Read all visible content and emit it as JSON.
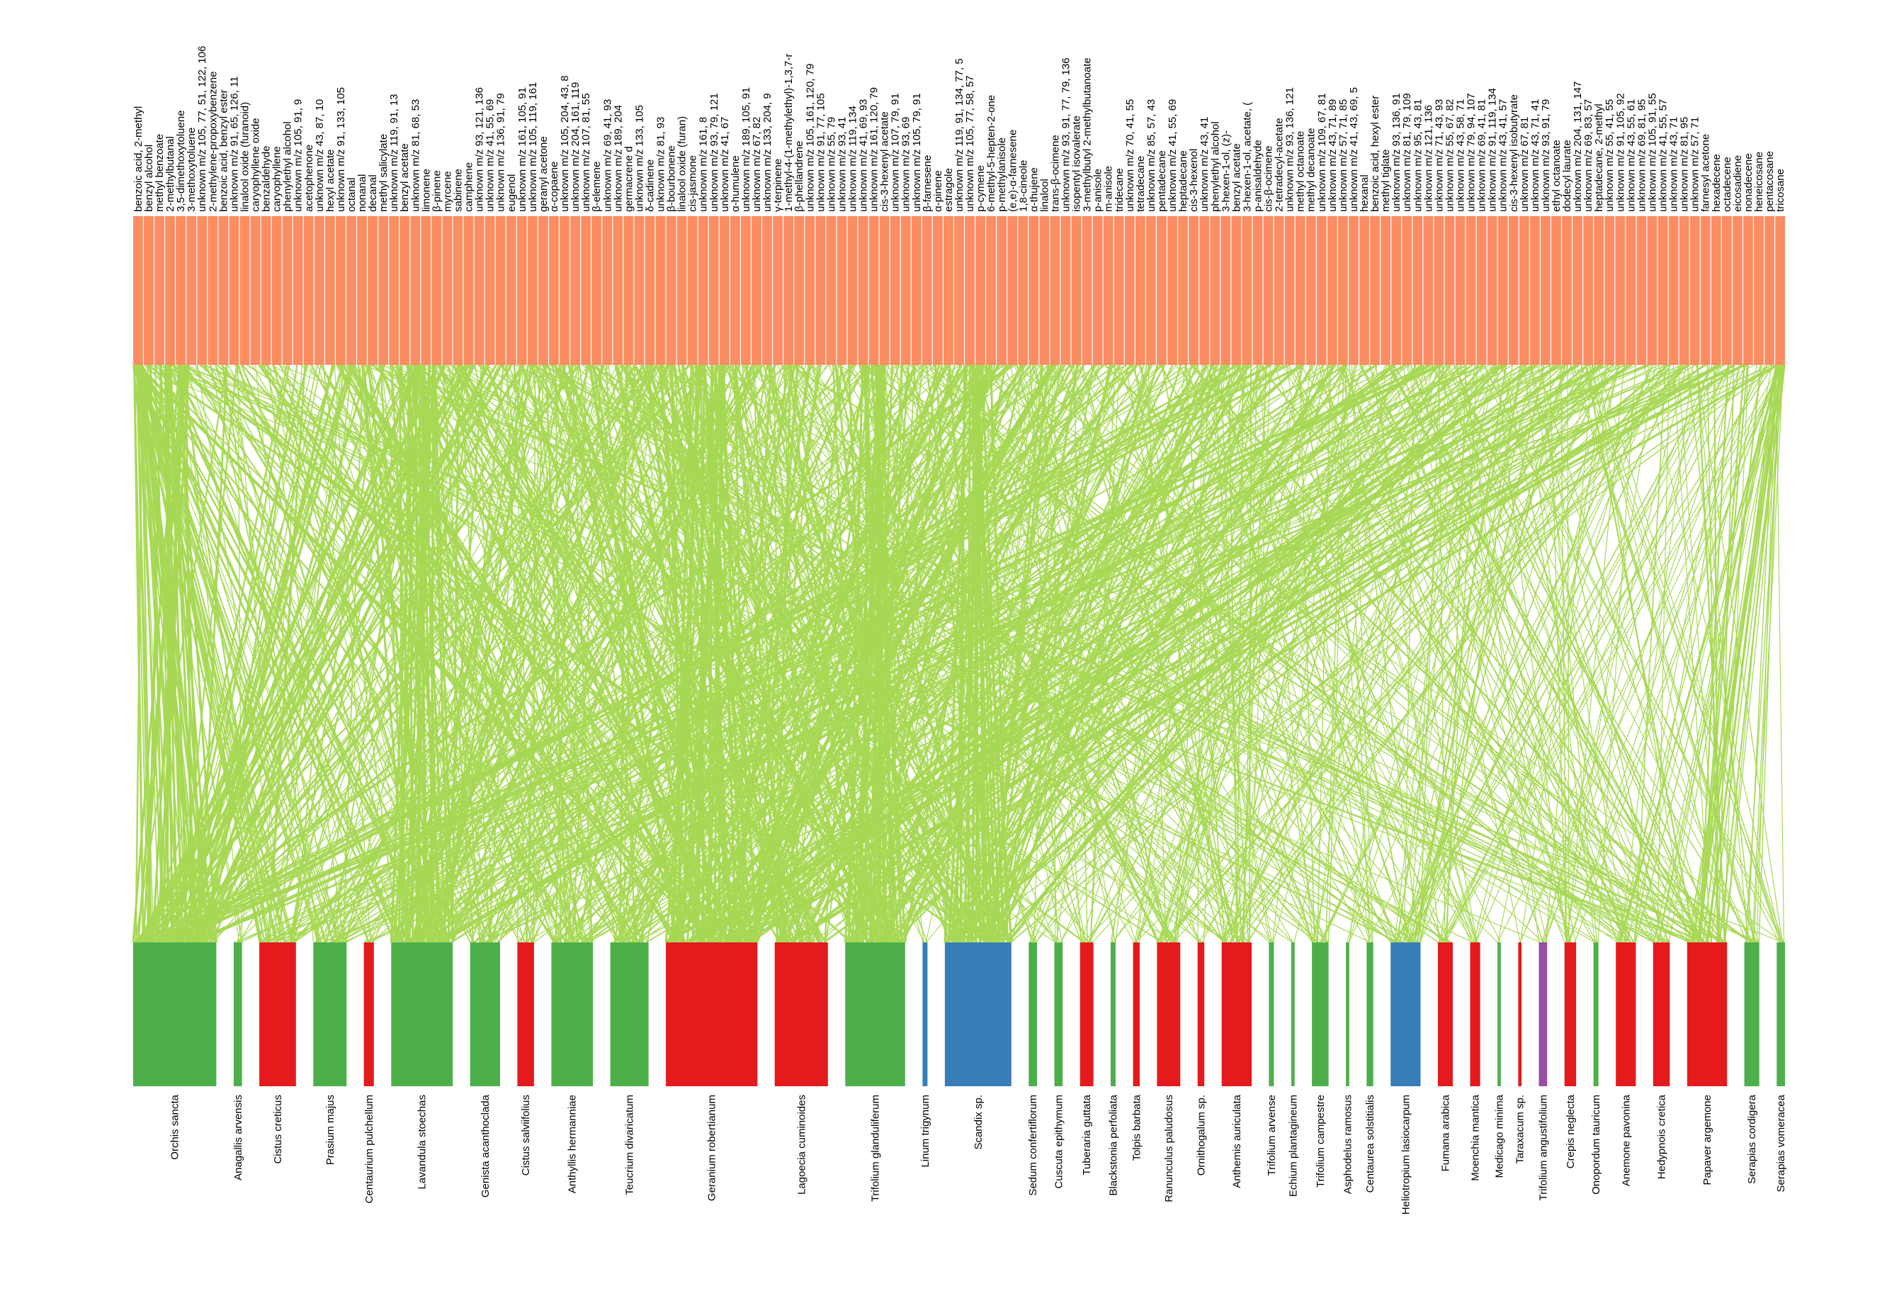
{
  "chart_data": {
    "type": "bipartite-network",
    "title": "",
    "colors": {
      "compound_bar": "#fc8d62",
      "link": "#a6d854",
      "plant_green": "#4daf4a",
      "plant_red": "#e41a1c",
      "plant_blue": "#377eb8",
      "plant_purple": "#984ea3"
    },
    "plants": [
      {
        "name": "Orchis sancta",
        "weight": 5.0,
        "color": "green"
      },
      {
        "name": "Anagallis arvensis",
        "weight": 0.5,
        "color": "green"
      },
      {
        "name": "Cistus creticus",
        "weight": 2.2,
        "color": "red"
      },
      {
        "name": "Prasium majus",
        "weight": 2.0,
        "color": "green"
      },
      {
        "name": "Centaurium pulchellum",
        "weight": 0.6,
        "color": "red"
      },
      {
        "name": "Lavandula stoechas",
        "weight": 3.7,
        "color": "green"
      },
      {
        "name": "Genista acanthoclada",
        "weight": 1.8,
        "color": "green"
      },
      {
        "name": "Cistus salviifolius",
        "weight": 1.0,
        "color": "red"
      },
      {
        "name": "Anthyllis hermanniae",
        "weight": 2.5,
        "color": "green"
      },
      {
        "name": "Teucrium divaricatum",
        "weight": 2.3,
        "color": "green"
      },
      {
        "name": "Geranium robertianum",
        "weight": 5.5,
        "color": "red"
      },
      {
        "name": "Lagoecia cuminoides",
        "weight": 3.2,
        "color": "red"
      },
      {
        "name": "Trifolium glanduliferum",
        "weight": 3.6,
        "color": "green"
      },
      {
        "name": "Linum trigynum",
        "weight": 0.3,
        "color": "blue"
      },
      {
        "name": "Scandix sp.",
        "weight": 4.0,
        "color": "blue"
      },
      {
        "name": "Sedum confertiflorum",
        "weight": 0.5,
        "color": "green"
      },
      {
        "name": "Cuscuta epithymum",
        "weight": 0.5,
        "color": "green"
      },
      {
        "name": "Tuberaria guttata",
        "weight": 0.8,
        "color": "red"
      },
      {
        "name": "Blackstonia perfoliata",
        "weight": 0.3,
        "color": "green"
      },
      {
        "name": "Tolpis barbata",
        "weight": 0.4,
        "color": "red"
      },
      {
        "name": "Ranunculus paludosus",
        "weight": 1.4,
        "color": "red"
      },
      {
        "name": "Ornithogalum sp.",
        "weight": 0.4,
        "color": "red"
      },
      {
        "name": "Anthemis auriculata",
        "weight": 1.8,
        "color": "red"
      },
      {
        "name": "Trifolium arvense",
        "weight": 0.3,
        "color": "green"
      },
      {
        "name": "Echium plantagineum",
        "weight": 0.2,
        "color": "green"
      },
      {
        "name": "Trifolium campestre",
        "weight": 1.0,
        "color": "green"
      },
      {
        "name": "Asphodelus ramosus",
        "weight": 0.2,
        "color": "green"
      },
      {
        "name": "Centaurea solstitialis",
        "weight": 0.4,
        "color": "green"
      },
      {
        "name": "Heliotropium lasiocarpum",
        "weight": 1.8,
        "color": "blue"
      },
      {
        "name": "Fumana arabica",
        "weight": 0.9,
        "color": "red"
      },
      {
        "name": "Moenchia mantica",
        "weight": 0.6,
        "color": "red"
      },
      {
        "name": "Medicago minima",
        "weight": 0.2,
        "color": "green"
      },
      {
        "name": "Taraxacum sp.",
        "weight": 0.2,
        "color": "red"
      },
      {
        "name": "Trifolium angustifolium",
        "weight": 0.5,
        "color": "purple"
      },
      {
        "name": "Crepis neglecta",
        "weight": 0.7,
        "color": "red"
      },
      {
        "name": "Onopordum tauricum",
        "weight": 0.3,
        "color": "green"
      },
      {
        "name": "Anemone pavonina",
        "weight": 1.2,
        "color": "red"
      },
      {
        "name": "Hedypnois cretica",
        "weight": 1.0,
        "color": "red"
      },
      {
        "name": "Papaver argemone",
        "weight": 2.4,
        "color": "red"
      },
      {
        "name": "Serapias cordigera",
        "weight": 0.9,
        "color": "green"
      },
      {
        "name": "Serapias vomeracea",
        "weight": 0.5,
        "color": "green"
      }
    ],
    "compounds": [
      "benzoic acid, 2-methyl",
      "benzyl alcohol",
      "methyl benzoate",
      "2-methylbutanal",
      "3,5-dimethoxytoluene",
      "3-methoxytoluene",
      "unknown m/z 105, 77, 51, 122, 106",
      "2-methylene-propoxybenzene",
      "benzoic acid, benzyl ester",
      "unknown m/z 91, 65, 126, 11",
      "linalool oxide (furanoid)",
      "caryophyllene oxide",
      "benzaldehyde",
      "caryophyllene",
      "phenylethyl alcohol",
      "unknown m/z 105, 91, 9",
      "acetophenone",
      "unknown m/z 43, 87, 10",
      "hexyl acetate",
      "unknown m/z 91, 133, 105",
      "octanal",
      "nonanal",
      "decanal",
      "methyl salicylate",
      "unknown m/z 119, 91, 13",
      "benzyl acetate",
      "unknown m/z 81, 68, 53",
      "limonene",
      "β-pinene",
      "myrcene",
      "sabinene",
      "camphene",
      "unknown m/z 93, 121, 136",
      "unknown m/z 41, 55, 69",
      "unknown m/z 136, 91, 79",
      "eugenol",
      "unknown m/z 161, 105, 91",
      "unknown m/z 105, 119, 161",
      "geranyl acetone",
      "α-copaene",
      "unknown m/z 105, 204, 43, 8",
      "unknown m/z 204, 161, 119",
      "unknown m/z 107, 81, 55",
      "β-elemene",
      "unknown m/z 69, 41, 93",
      "unknown m/z 189, 204",
      "germacrene d",
      "unknown m/z 133, 105",
      "δ-cadinene",
      "unknown m/z 81, 93",
      "β-bourbonene",
      "linalool oxide (furan)",
      "cis-jasmone",
      "unknown m/z 161, 8",
      "unknown m/z 93, 79, 121",
      "unknown m/z 41, 67",
      "α-humulene",
      "unknown m/z 189, 105, 91",
      "unknown m/z 67, 82",
      "unknown m/z 133, 204, 9",
      "γ-terpinene",
      "1-methyl-4-(1-methylethyl)-1,3,7-r",
      "β-phellandrene",
      "unknown m/z 105, 161, 120, 79",
      "unknown m/z 91, 77, 105",
      "unknown m/z 55, 79",
      "unknown m/z 93, 41",
      "unknown m/z 119, 134",
      "unknown m/z 41, 69, 93",
      "unknown m/z 161, 120, 79",
      "cis-3-hexenyl acetate",
      "unknown m/z 107, 79, 91",
      "unknown m/z 93, 69",
      "unknown m/z 105, 79, 91",
      "β-farnesene",
      "α-pinene",
      "estragole",
      "unknown m/z 119, 91, 134, 77, 5",
      "unknown m/z 105, 77, 58, 57",
      "p-cymene",
      "6-methyl-5-hepten-2-one",
      "p-methylanisole",
      "(e,e)-α-farnesene",
      "1,8-cineole",
      "α-thujene",
      "linalool",
      "trans-β-ocimene",
      "unknown m/z 93, 91, 77, 79, 136",
      "isopentyl isovalerate",
      "3-methylbutyl 2-methylbutanoate",
      "p-anisole",
      "m-anisole",
      "tridecane",
      "unknown m/z 70, 41, 55",
      "tetradecane",
      "unknown m/z 85, 57, 43",
      "pentadecane",
      "unknown m/z 41, 55, 69",
      "heptadecane",
      "cis-3-hexenol",
      "unknown m/z 43, 41",
      "phenylethyl alcohol",
      "3-hexen-1-ol, (z)-",
      "benzyl acetate",
      "3-hexen-1-ol, acetate, (",
      "p-anisaldehyde",
      "cis-β-ocimene",
      "2-tetradecyl-acetate",
      "unknown m/z 93, 136, 121",
      "methyl octanoate",
      "methyl decanoate",
      "unknown m/z 109, 67, 81",
      "unknown m/z 43, 71, 89",
      "unknown m/z 57, 71, 85",
      "unknown m/z 41, 43, 69, 5",
      "hexanal",
      "benzoic acid, hexyl ester",
      "methyl tiglate",
      "unknown m/z 93, 136, 91",
      "unknown m/z 81, 79, 109",
      "unknown m/z 95, 43, 81",
      "unknown m/z 121, 136",
      "unknown m/z 71, 43, 93",
      "unknown m/z 55, 67, 82",
      "unknown m/z 43, 58, 71",
      "unknown m/z 79, 94, 107",
      "unknown m/z 69, 41, 81",
      "unknown m/z 91, 119, 134",
      "unknown m/z 43, 41, 57",
      "cis-3-hexenyl isobutyrate",
      "unknown m/z 67, 81",
      "unknown m/z 43, 71, 41",
      "unknown m/z 93, 91, 79",
      "ethyl octanoate",
      "dodecyl laurate",
      "unknown m/z 204, 131, 147",
      "unknown m/z 69, 83, 57",
      "heptadecane, 2-methyl",
      "unknown m/z 55, 41, 55",
      "unknown m/z 91, 105, 92",
      "unknown m/z 43, 55, 61",
      "unknown m/z 69, 81, 95",
      "unknown m/z 105, 91, 55",
      "unknown m/z 41, 55, 57",
      "unknown m/z 43, 71",
      "unknown m/z 81, 95",
      "unknown m/z 57, 71",
      "farnesyl acetone",
      "hexadecene",
      "octadecene",
      "eicosadiene",
      "nonadecene",
      "heneicosane",
      "pentacosane",
      "tricosane"
    ]
  }
}
